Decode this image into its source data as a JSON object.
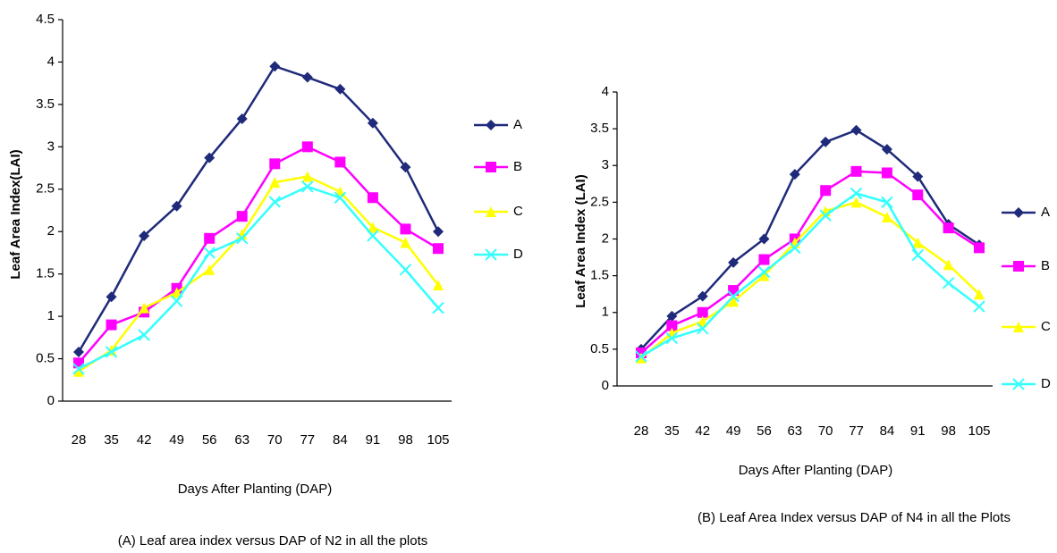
{
  "chart_data": [
    {
      "type": "line",
      "y_label": "Leaf Area Index(LAI)",
      "x_label": "Days After Planting (DAP)",
      "caption": "(A)    Leaf area index versus DAP of N2 in all the plots",
      "categories": [
        "28",
        "35",
        "42",
        "49",
        "56",
        "63",
        "70",
        "77",
        "84",
        "91",
        "98",
        "105"
      ],
      "ylim": [
        0,
        4.5
      ],
      "yticks": [
        0,
        0.5,
        1,
        1.5,
        2,
        2.5,
        3,
        3.5,
        4,
        4.5
      ],
      "series": [
        {
          "name": "A",
          "color": "#1f2a7a",
          "marker": "diamond",
          "values": [
            0.58,
            1.23,
            1.95,
            2.3,
            2.87,
            3.33,
            3.95,
            3.82,
            3.68,
            3.28,
            2.76,
            2.0
          ]
        },
        {
          "name": "B",
          "color": "#ff00ff",
          "marker": "square",
          "values": [
            0.45,
            0.9,
            1.05,
            1.33,
            1.92,
            2.18,
            2.8,
            3.0,
            2.82,
            2.4,
            2.03,
            1.8
          ]
        },
        {
          "name": "C",
          "color": "#ffff00",
          "marker": "triangle",
          "values": [
            0.35,
            0.6,
            1.1,
            1.28,
            1.55,
            1.97,
            2.58,
            2.65,
            2.47,
            2.05,
            1.87,
            1.37
          ]
        },
        {
          "name": "D",
          "color": "#33ffff",
          "marker": "x",
          "values": [
            0.38,
            0.58,
            0.78,
            1.18,
            1.75,
            1.92,
            2.35,
            2.53,
            2.4,
            1.95,
            1.55,
            1.1
          ]
        }
      ]
    },
    {
      "type": "line",
      "y_label": "Leaf Area Index (LAI)",
      "x_label": "Days After Planting (DAP)",
      "caption": "(B)    Leaf Area Index versus DAP of N4 in all the Plots",
      "categories": [
        "28",
        "35",
        "42",
        "49",
        "56",
        "63",
        "70",
        "77",
        "84",
        "91",
        "98",
        "105"
      ],
      "ylim": [
        0,
        4
      ],
      "yticks": [
        0,
        0.5,
        1,
        1.5,
        2,
        2.5,
        3,
        3.5,
        4
      ],
      "series": [
        {
          "name": "A",
          "color": "#1f2a7a",
          "marker": "diamond",
          "values": [
            0.5,
            0.95,
            1.22,
            1.68,
            2.0,
            2.88,
            3.32,
            3.48,
            3.22,
            2.85,
            2.2,
            1.92
          ]
        },
        {
          "name": "B",
          "color": "#ff00ff",
          "marker": "square",
          "values": [
            0.45,
            0.82,
            1.0,
            1.3,
            1.72,
            2.0,
            2.66,
            2.92,
            2.9,
            2.6,
            2.15,
            1.88
          ]
        },
        {
          "name": "C",
          "color": "#ffff00",
          "marker": "triangle",
          "values": [
            0.38,
            0.72,
            0.88,
            1.15,
            1.5,
            1.95,
            2.38,
            2.5,
            2.3,
            1.95,
            1.65,
            1.25
          ]
        },
        {
          "name": "D",
          "color": "#33ffff",
          "marker": "x",
          "values": [
            0.4,
            0.65,
            0.78,
            1.22,
            1.55,
            1.88,
            2.32,
            2.62,
            2.5,
            1.78,
            1.4,
            1.08
          ]
        }
      ]
    }
  ]
}
